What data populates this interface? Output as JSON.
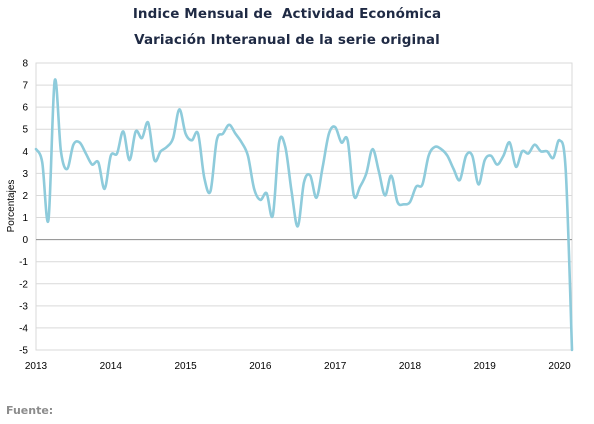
{
  "title": "Indice Mensual de  Actividad Económica",
  "subtitle": "Variación Interanual de la serie original",
  "source_label": "Fuente:",
  "colors": {
    "line": "#8ecbdb",
    "grid": "#d9d9d9",
    "zero_line": "#8c8c8c",
    "axis_text": "#000000",
    "title": "#1f2a44"
  },
  "chart_data": {
    "type": "line",
    "title": "Indice Mensual de  Actividad Económica",
    "subtitle": "Variación Interanual de la serie original",
    "xlabel": "",
    "ylabel": "Porcentajes",
    "ylim": [
      -5,
      8
    ],
    "yticks": [
      -5,
      -4,
      -3,
      -2,
      -1,
      0,
      1,
      2,
      3,
      4,
      5,
      6,
      7,
      8
    ],
    "xlim": [
      "2013-01",
      "2020-03"
    ],
    "xtick_labels": [
      "2013",
      "2014",
      "2015",
      "2016",
      "2017",
      "2018",
      "2019",
      "2020"
    ],
    "grid": true,
    "legend": "none",
    "x": [
      "2013-01",
      "2013-02",
      "2013-03",
      "2013-04",
      "2013-05",
      "2013-06",
      "2013-07",
      "2013-08",
      "2013-09",
      "2013-10",
      "2013-11",
      "2013-12",
      "2014-01",
      "2014-02",
      "2014-03",
      "2014-04",
      "2014-05",
      "2014-06",
      "2014-07",
      "2014-08",
      "2014-09",
      "2014-10",
      "2014-11",
      "2014-12",
      "2015-01",
      "2015-02",
      "2015-03",
      "2015-04",
      "2015-05",
      "2015-06",
      "2015-07",
      "2015-08",
      "2015-09",
      "2015-10",
      "2015-11",
      "2015-12",
      "2016-01",
      "2016-02",
      "2016-03",
      "2016-04",
      "2016-05",
      "2016-06",
      "2016-07",
      "2016-08",
      "2016-09",
      "2016-10",
      "2016-11",
      "2016-12",
      "2017-01",
      "2017-02",
      "2017-03",
      "2017-04",
      "2017-05",
      "2017-06",
      "2017-07",
      "2017-08",
      "2017-09",
      "2017-10",
      "2017-11",
      "2017-12",
      "2018-01",
      "2018-02",
      "2018-03",
      "2018-04",
      "2018-05",
      "2018-06",
      "2018-07",
      "2018-08",
      "2018-09",
      "2018-10",
      "2018-11",
      "2018-12",
      "2019-01",
      "2019-02",
      "2019-03",
      "2019-04",
      "2019-05",
      "2019-06",
      "2019-07",
      "2019-08",
      "2019-09",
      "2019-10",
      "2019-11",
      "2019-12",
      "2020-01",
      "2020-02",
      "2020-03"
    ],
    "y": [
      4.1,
      3.5,
      0.9,
      7.2,
      4.0,
      3.2,
      4.3,
      4.4,
      3.9,
      3.4,
      3.5,
      2.3,
      3.8,
      3.9,
      4.9,
      3.6,
      4.9,
      4.6,
      5.3,
      3.6,
      4.0,
      4.2,
      4.6,
      5.9,
      4.8,
      4.5,
      4.8,
      2.8,
      2.2,
      4.5,
      4.8,
      5.2,
      4.8,
      4.4,
      3.8,
      2.3,
      1.8,
      2.1,
      1.1,
      4.4,
      4.2,
      2.2,
      0.6,
      2.6,
      2.9,
      1.9,
      3.3,
      4.8,
      5.1,
      4.4,
      4.5,
      2.0,
      2.4,
      3.0,
      4.1,
      3.1,
      2.0,
      2.9,
      1.7,
      1.6,
      1.7,
      2.4,
      2.5,
      3.8,
      4.2,
      4.1,
      3.8,
      3.2,
      2.7,
      3.8,
      3.8,
      2.5,
      3.6,
      3.8,
      3.4,
      3.8,
      4.4,
      3.3,
      4.0,
      3.9,
      4.3,
      4.0,
      4.0,
      3.7,
      4.5,
      3.1,
      -5.0
    ]
  }
}
